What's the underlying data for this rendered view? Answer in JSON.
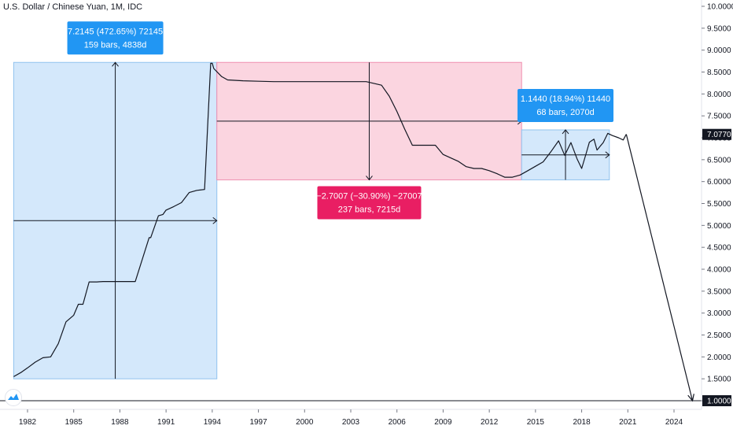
{
  "chart_data": {
    "type": "line",
    "title": "U.S. Dollar / Chinese Yuan, 1M, IDC",
    "x_axis": {
      "ticks": [
        "1982",
        "1985",
        "1988",
        "1991",
        "1994",
        "1997",
        "2000",
        "2003",
        "2006",
        "2009",
        "2012",
        "2015",
        "2018",
        "2021",
        "2024"
      ],
      "range": [
        1981.0,
        2026.0
      ]
    },
    "y_axis": {
      "ticks": [
        "1.0000",
        "1.5000",
        "2.0000",
        "2.5000",
        "3.0000",
        "3.5000",
        "4.0000",
        "4.5000",
        "5.0000",
        "5.5000",
        "6.0000",
        "6.5000",
        "7.0000",
        "7.5000",
        "8.0000",
        "8.5000",
        "9.0000",
        "9.5000",
        "10.0000"
      ],
      "range": [
        0.83,
        10.1
      ],
      "position": "right"
    },
    "current_price_label": "7.0770",
    "reference_price_label": "1.0000",
    "series": [
      {
        "x": [
          1981.1,
          1981.6,
          1982.0,
          1982.5,
          1983.0,
          1983.5,
          1984.0,
          1984.5,
          1985.0,
          1985.3,
          1985.6,
          1986.0,
          1986.5,
          1986.9,
          1987.0,
          1988.0,
          1989.0,
          1989.9,
          1990.0,
          1990.5,
          1990.8,
          1991.0,
          1991.5,
          1992.0,
          1992.5,
          1993.0,
          1993.5,
          1993.9,
          1994.0,
          1994.1,
          1994.6,
          1995.0,
          1996.0,
          1997.0,
          1998.0,
          1999.0,
          2000.0,
          2001.0,
          2002.0,
          2003.0,
          2004.0,
          2005.0,
          2005.5,
          2006.0,
          2006.5,
          2007.0,
          2007.5,
          2008.0,
          2008.5,
          2009.0,
          2010.0,
          2010.5,
          2011.0,
          2011.5,
          2012.0,
          2012.5,
          2013.0,
          2013.5,
          2014.0,
          2014.5,
          2015.0,
          2015.5,
          2016.0,
          2016.5,
          2016.9,
          2017.3,
          2017.7,
          2018.0,
          2018.3,
          2018.5,
          2018.8,
          2019.0,
          2019.4,
          2019.7,
          2020.0,
          2020.4,
          2020.7,
          2020.9
        ],
        "y": [
          1.55,
          1.65,
          1.75,
          1.88,
          1.98,
          2.0,
          2.3,
          2.8,
          2.95,
          3.2,
          3.2,
          3.71,
          3.71,
          3.72,
          3.72,
          3.72,
          3.72,
          4.72,
          4.72,
          5.22,
          5.25,
          5.35,
          5.43,
          5.52,
          5.75,
          5.8,
          5.82,
          8.7,
          8.7,
          8.58,
          8.4,
          8.32,
          8.3,
          8.29,
          8.28,
          8.28,
          8.28,
          8.28,
          8.28,
          8.28,
          8.28,
          8.2,
          7.95,
          7.6,
          7.2,
          6.83,
          6.83,
          6.83,
          6.83,
          6.62,
          6.46,
          6.34,
          6.3,
          6.3,
          6.25,
          6.18,
          6.1,
          6.1,
          6.15,
          6.25,
          6.35,
          6.45,
          6.68,
          6.93,
          6.6,
          6.89,
          6.52,
          6.3,
          6.65,
          6.9,
          6.97,
          6.72,
          6.89,
          7.1,
          7.05,
          7.0,
          6.95,
          7.08
        ]
      }
    ],
    "annotations": {
      "range_1": {
        "line1": "7.2145 (472.65%) 72145",
        "line2": "159 bars, 4838d",
        "x_start": 1981.1,
        "x_end": 1994.3,
        "y_low": 1.5,
        "y_high": 8.72
      },
      "range_2": {
        "line1": "−2.7007 (−30.90%) −27007",
        "line2": "237 bars, 7215d",
        "x_start": 1994.3,
        "x_end": 2014.1,
        "y_low": 6.04,
        "y_high": 8.72
      },
      "range_3": {
        "line1": "1.1440 (18.94%) 11440",
        "line2": "68 bars, 2070d",
        "x_start": 2014.1,
        "x_end": 2019.8,
        "y_low": 6.04,
        "y_high": 7.18
      },
      "projection_arrow": {
        "x_start": 2020.9,
        "y_start": 7.08,
        "x_end": 2025.2,
        "y_end": 1.0
      }
    },
    "colors": {
      "line": "#131722",
      "range_up_fill": "#d4e8fb",
      "range_up_border": "#90c2ee",
      "range_up_label": "#2196f3",
      "range_down_fill": "#fbd5e0",
      "range_down_border": "#f08fb0",
      "range_down_label": "#e91e63",
      "axis_text": "#131722",
      "axis_line": "#e0e3eb"
    },
    "grid": false
  }
}
